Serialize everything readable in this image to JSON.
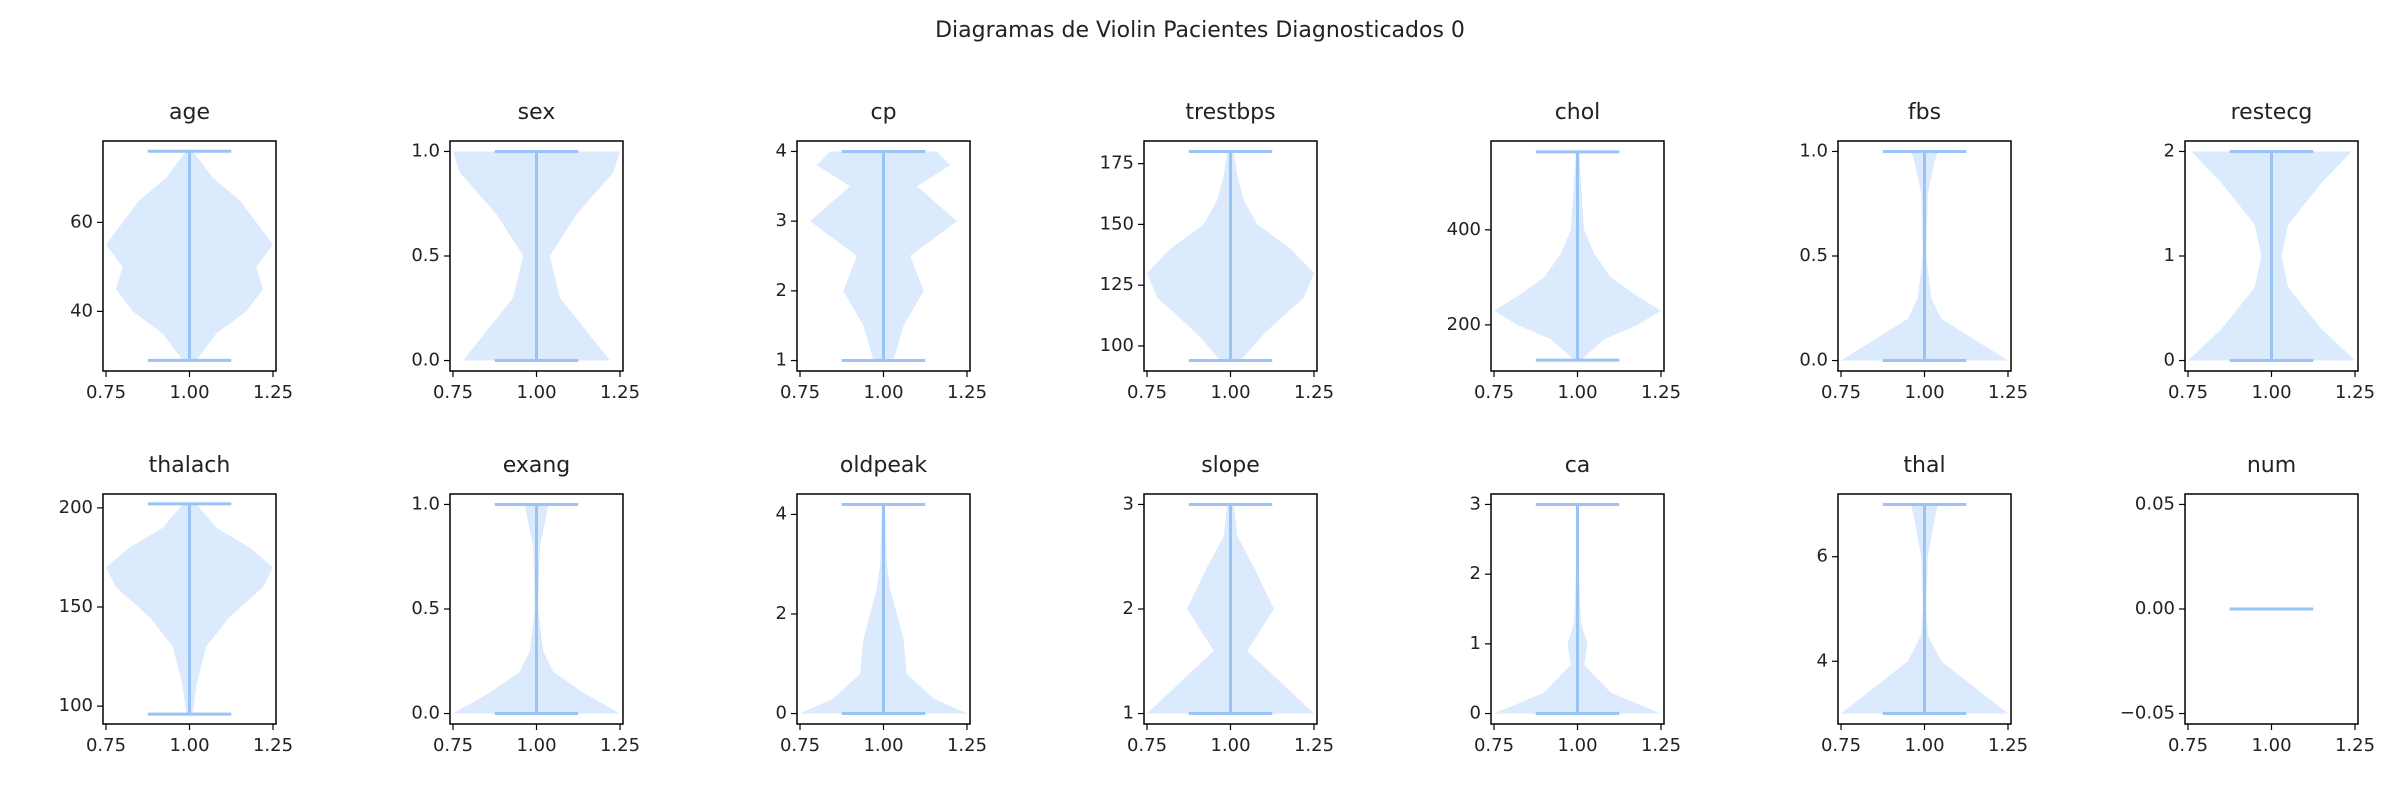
{
  "title": "Diagramas de Violin Pacientes Diagnosticados 0",
  "chart_data": [
    {
      "type": "violin",
      "title": "age",
      "position": 1,
      "min": 29,
      "max": 76,
      "kde": {
        "y": [
          29,
          35,
          40,
          45,
          50,
          55,
          60,
          65,
          70,
          76
        ],
        "width": [
          0.02,
          0.08,
          0.17,
          0.22,
          0.2,
          0.25,
          0.2,
          0.15,
          0.07,
          0.01
        ]
      },
      "ylim": [
        26.6,
        78.3
      ],
      "yticks": [
        40,
        60
      ],
      "xlim": [
        0.741,
        1.259
      ],
      "xticks": [
        0.75,
        {
          "value": 1,
          "label": "1.00"
        },
        1.25
      ],
      "color": "#9ac4f5",
      "body_color": "#dceafd"
    },
    {
      "type": "violin",
      "title": "sex",
      "position": 1,
      "min": 0,
      "max": 1,
      "kde": {
        "y": [
          0,
          0.1,
          0.3,
          0.5,
          0.7,
          0.9,
          1
        ],
        "width": [
          0.22,
          0.17,
          0.07,
          0.04,
          0.12,
          0.23,
          0.25
        ]
      },
      "ylim": [
        -0.05,
        1.05
      ],
      "yticks": [
        {
          "value": 0,
          "label": "0.0"
        },
        0.5,
        {
          "value": 1,
          "label": "1.0"
        }
      ],
      "xlim": [
        0.741,
        1.259
      ],
      "xticks": [
        0.75,
        {
          "value": 1,
          "label": "1.00"
        },
        1.25
      ],
      "color": "#9ac4f5",
      "body_color": "#dceafd"
    },
    {
      "type": "violin",
      "title": "cp",
      "position": 1,
      "min": 1,
      "max": 4,
      "kde": {
        "y": [
          1,
          1.5,
          2,
          2.5,
          3,
          3.5,
          3.8,
          4
        ],
        "width": [
          0.03,
          0.06,
          0.12,
          0.08,
          0.22,
          0.1,
          0.2,
          0.16
        ]
      },
      "ylim": [
        0.85,
        4.15
      ],
      "yticks": [
        1,
        2,
        3,
        4
      ],
      "xlim": [
        0.741,
        1.259
      ],
      "xticks": [
        0.75,
        {
          "value": 1,
          "label": "1.00"
        },
        1.25
      ],
      "color": "#9ac4f5",
      "body_color": "#dceafd"
    },
    {
      "type": "violin",
      "title": "trestbps",
      "position": 1,
      "min": 94,
      "max": 180,
      "kde": {
        "y": [
          94,
          105,
          120,
          130,
          140,
          150,
          160,
          170,
          180
        ],
        "width": [
          0.03,
          0.1,
          0.22,
          0.25,
          0.18,
          0.08,
          0.04,
          0.02,
          0.01
        ]
      },
      "ylim": [
        89.7,
        184.3
      ],
      "yticks": [
        100,
        125,
        150,
        175
      ],
      "xlim": [
        0.741,
        1.259
      ],
      "xticks": [
        0.75,
        {
          "value": 1,
          "label": "1.00"
        },
        1.25
      ],
      "color": "#9ac4f5",
      "body_color": "#dceafd"
    },
    {
      "type": "violin",
      "title": "chol",
      "position": 1,
      "min": 126,
      "max": 564,
      "kde": {
        "y": [
          126,
          170,
          200,
          230,
          260,
          300,
          350,
          400,
          500,
          564
        ],
        "width": [
          0.01,
          0.08,
          0.18,
          0.25,
          0.18,
          0.1,
          0.05,
          0.02,
          0.01,
          0.005
        ]
      },
      "ylim": [
        103,
        587
      ],
      "yticks": [
        200,
        400
      ],
      "xlim": [
        0.741,
        1.259
      ],
      "xticks": [
        0.75,
        {
          "value": 1,
          "label": "1.00"
        },
        1.25
      ],
      "color": "#9ac4f5",
      "body_color": "#dceafd"
    },
    {
      "type": "violin",
      "title": "fbs",
      "position": 1,
      "min": 0,
      "max": 1,
      "kde": {
        "y": [
          0,
          0.1,
          0.2,
          0.3,
          0.5,
          0.8,
          0.95,
          1
        ],
        "width": [
          0.25,
          0.15,
          0.05,
          0.02,
          0.005,
          0.01,
          0.03,
          0.04
        ]
      },
      "ylim": [
        -0.05,
        1.05
      ],
      "yticks": [
        {
          "value": 0,
          "label": "0.0"
        },
        0.5,
        {
          "value": 1,
          "label": "1.0"
        }
      ],
      "xlim": [
        0.741,
        1.259
      ],
      "xticks": [
        0.75,
        {
          "value": 1,
          "label": "1.00"
        },
        1.25
      ],
      "color": "#9ac4f5",
      "body_color": "#dceafd"
    },
    {
      "type": "violin",
      "title": "restecg",
      "position": 1,
      "min": 0,
      "max": 2,
      "kde": {
        "y": [
          0,
          0.3,
          0.7,
          1,
          1.3,
          1.7,
          2
        ],
        "width": [
          0.25,
          0.15,
          0.05,
          0.03,
          0.05,
          0.15,
          0.24
        ]
      },
      "ylim": [
        -0.1,
        2.1
      ],
      "yticks": [
        0,
        1,
        2
      ],
      "xlim": [
        0.741,
        1.259
      ],
      "xticks": [
        0.75,
        {
          "value": 1,
          "label": "1.00"
        },
        1.25
      ],
      "color": "#9ac4f5",
      "body_color": "#dceafd"
    },
    {
      "type": "violin",
      "title": "thalach",
      "position": 1,
      "min": 96,
      "max": 202,
      "kde": {
        "y": [
          96,
          110,
          130,
          145,
          160,
          170,
          180,
          190,
          202
        ],
        "width": [
          0.01,
          0.02,
          0.05,
          0.12,
          0.22,
          0.25,
          0.18,
          0.08,
          0.02
        ]
      },
      "ylim": [
        91,
        207
      ],
      "yticks": [
        100,
        150,
        200
      ],
      "xlim": [
        0.741,
        1.259
      ],
      "xticks": [
        0.75,
        {
          "value": 1,
          "label": "1.00"
        },
        1.25
      ],
      "color": "#9ac4f5",
      "body_color": "#dceafd"
    },
    {
      "type": "violin",
      "title": "exang",
      "position": 1,
      "min": 0,
      "max": 1,
      "kde": {
        "y": [
          0,
          0.1,
          0.2,
          0.3,
          0.5,
          0.8,
          0.95,
          1
        ],
        "width": [
          0.25,
          0.14,
          0.05,
          0.02,
          0.005,
          0.01,
          0.03,
          0.035
        ]
      },
      "ylim": [
        -0.05,
        1.05
      ],
      "yticks": [
        {
          "value": 0,
          "label": "0.0"
        },
        0.5,
        {
          "value": 1,
          "label": "1.0"
        }
      ],
      "xlim": [
        0.741,
        1.259
      ],
      "xticks": [
        0.75,
        {
          "value": 1,
          "label": "1.00"
        },
        1.25
      ],
      "color": "#9ac4f5",
      "body_color": "#dceafd"
    },
    {
      "type": "violin",
      "title": "oldpeak",
      "position": 1,
      "min": 0,
      "max": 4.2,
      "kde": {
        "y": [
          0,
          0.3,
          0.8,
          1.5,
          2,
          2.5,
          3,
          4.2
        ],
        "width": [
          0.25,
          0.15,
          0.07,
          0.06,
          0.04,
          0.02,
          0.01,
          0.005
        ]
      },
      "ylim": [
        -0.21,
        4.41
      ],
      "yticks": [
        0,
        2,
        4
      ],
      "xlim": [
        0.741,
        1.259
      ],
      "xticks": [
        0.75,
        {
          "value": 1,
          "label": "1.00"
        },
        1.25
      ],
      "color": "#9ac4f5",
      "body_color": "#dceafd"
    },
    {
      "type": "violin",
      "title": "slope",
      "position": 1,
      "min": 1,
      "max": 3,
      "kde": {
        "y": [
          1,
          1.3,
          1.6,
          2,
          2.4,
          2.7,
          3
        ],
        "width": [
          0.25,
          0.15,
          0.05,
          0.13,
          0.07,
          0.02,
          0.01
        ]
      },
      "ylim": [
        0.9,
        3.1
      ],
      "yticks": [
        1,
        2,
        3
      ],
      "xlim": [
        0.741,
        1.259
      ],
      "xticks": [
        0.75,
        {
          "value": 1,
          "label": "1.00"
        },
        1.25
      ],
      "color": "#9ac4f5",
      "body_color": "#dceafd"
    },
    {
      "type": "violin",
      "title": "ca",
      "position": 1,
      "min": 0,
      "max": 3,
      "kde": {
        "y": [
          0,
          0.3,
          0.7,
          1,
          1.3,
          2,
          3
        ],
        "width": [
          0.25,
          0.1,
          0.02,
          0.03,
          0.01,
          0.005,
          0.002
        ]
      },
      "ylim": [
        -0.15,
        3.15
      ],
      "yticks": [
        0,
        1,
        2,
        3
      ],
      "xlim": [
        0.741,
        1.259
      ],
      "xticks": [
        0.75,
        {
          "value": 1,
          "label": "1.00"
        },
        1.25
      ],
      "color": "#9ac4f5",
      "body_color": "#dceafd"
    },
    {
      "type": "violin",
      "title": "thal",
      "position": 1,
      "min": 3,
      "max": 7,
      "kde": {
        "y": [
          3,
          3.5,
          4,
          4.5,
          5,
          6,
          6.7,
          7
        ],
        "width": [
          0.25,
          0.15,
          0.05,
          0.01,
          0.005,
          0.01,
          0.03,
          0.04
        ]
      },
      "ylim": [
        2.8,
        7.2
      ],
      "yticks": [
        4,
        6
      ],
      "xlim": [
        0.741,
        1.259
      ],
      "xticks": [
        0.75,
        {
          "value": 1,
          "label": "1.00"
        },
        1.25
      ],
      "color": "#9ac4f5",
      "body_color": "#dceafd"
    },
    {
      "type": "violin",
      "title": "num",
      "position": 1,
      "min": 0,
      "max": 0,
      "ylim": [
        -0.055,
        0.055
      ],
      "yticks": [
        {
          "value": -0.05,
          "label": "−0.05"
        },
        {
          "value": 0,
          "label": "0.00"
        },
        0.05
      ],
      "xlim": [
        0.741,
        1.259
      ],
      "xticks": [
        0.75,
        {
          "value": 1,
          "label": "1.00"
        },
        1.25
      ],
      "color": "#9ac4f5",
      "body_color": "#dceafd"
    }
  ]
}
